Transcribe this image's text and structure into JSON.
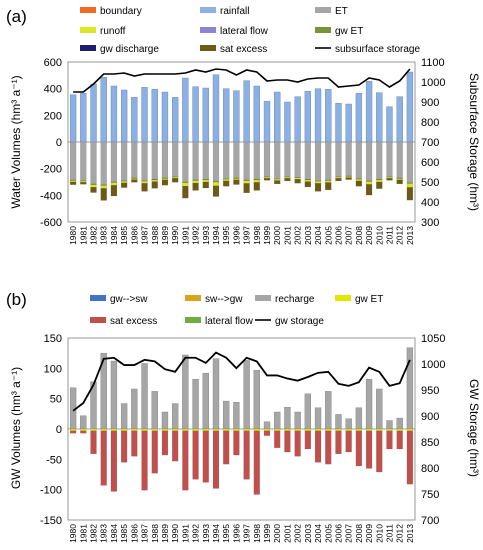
{
  "colors": {
    "boundary": "#f26b22",
    "rainfall": "#8db0e3",
    "ET": "#a6a6a6",
    "runoff": "#d9e820",
    "lateral_flow": "#8a83d8",
    "gw_ET": "#77933c",
    "gw_discharge": "#1f1a74",
    "sat_excess": "#6e5a16",
    "gw_sw": "#4472c4",
    "sw_gw": "#d9a31b",
    "recharge_b": "#a6a6a6",
    "gw_ET_b": "#e0e800",
    "sat_excess_b": "#c0504d",
    "lateral_flow_b": "#70ad47",
    "line": "#000000"
  },
  "chart_data": [
    {
      "panel_label": "(a)",
      "type": "bar",
      "categories": [
        "1980",
        "1981",
        "1982",
        "1983",
        "1984",
        "1985",
        "1986",
        "1987",
        "1988",
        "1989",
        "1990",
        "1991",
        "1992",
        "1993",
        "1994",
        "1995",
        "1996",
        "1997",
        "1998",
        "1999",
        "2000",
        "2001",
        "2002",
        "2003",
        "2004",
        "2005",
        "2006",
        "2007",
        "2008",
        "2009",
        "2010",
        "2011",
        "2012",
        "2013"
      ],
      "ylabel": "Water Volumes (hm³ a⁻¹)",
      "ylabel_right": "Subsurface Storage (hm³)",
      "ylim": [
        -600,
        600
      ],
      "yticks": [
        -600,
        -400,
        -200,
        0,
        200,
        400,
        600
      ],
      "ylim_right": [
        300,
        1100
      ],
      "yticks_right": [
        300,
        400,
        500,
        600,
        700,
        800,
        900,
        1000,
        1100
      ],
      "legend": [
        {
          "label": "boundary",
          "key": "boundary",
          "kind": "bar"
        },
        {
          "label": "rainfall",
          "key": "rainfall",
          "kind": "bar"
        },
        {
          "label": "ET",
          "key": "ET",
          "kind": "bar"
        },
        {
          "label": "runoff",
          "key": "runoff",
          "kind": "bar"
        },
        {
          "label": "lateral flow",
          "key": "lateral_flow",
          "kind": "bar"
        },
        {
          "label": "gw ET",
          "key": "gw_ET",
          "kind": "bar"
        },
        {
          "label": "gw discharge",
          "key": "gw_discharge",
          "kind": "bar"
        },
        {
          "label": "sat excess",
          "key": "sat_excess",
          "kind": "bar"
        },
        {
          "label": "subsurface storage",
          "key": "line",
          "kind": "line"
        }
      ],
      "series": [
        {
          "name": "rainfall",
          "values": [
            355,
            365,
            435,
            485,
            420,
            390,
            335,
            410,
            395,
            375,
            335,
            480,
            415,
            405,
            505,
            400,
            385,
            460,
            420,
            305,
            375,
            300,
            340,
            380,
            400,
            395,
            290,
            285,
            365,
            455,
            370,
            265,
            340,
            525
          ]
        },
        {
          "name": "ET",
          "values": [
            -285,
            -290,
            -315,
            -320,
            -300,
            -290,
            -270,
            -290,
            -280,
            -270,
            -260,
            -300,
            -285,
            -280,
            -295,
            -275,
            -270,
            -285,
            -280,
            -260,
            -275,
            -260,
            -265,
            -280,
            -290,
            -285,
            -260,
            -255,
            -275,
            -290,
            -280,
            -260,
            -270,
            -305
          ]
        },
        {
          "name": "runoff",
          "values": [
            -10,
            -8,
            -18,
            -22,
            -20,
            -12,
            -8,
            -15,
            -12,
            -10,
            -8,
            -25,
            -18,
            -15,
            -28,
            -12,
            -10,
            -20,
            -18,
            -8,
            -10,
            -8,
            -10,
            -12,
            -15,
            -14,
            -8,
            -8,
            -12,
            -22,
            -15,
            -8,
            -10,
            -30
          ]
        },
        {
          "name": "sat excess",
          "values": [
            -20,
            -15,
            -40,
            -90,
            -80,
            -35,
            -20,
            -60,
            -50,
            -40,
            -30,
            -90,
            -55,
            -45,
            -80,
            -40,
            -35,
            -70,
            -60,
            -15,
            -25,
            -20,
            -30,
            -40,
            -60,
            -55,
            -20,
            -15,
            -40,
            -80,
            -50,
            -15,
            -30,
            -95
          ]
        },
        {
          "name": "gw ET",
          "values": [
            -5,
            -4,
            -6,
            -6,
            -5,
            -5,
            -4,
            -5,
            -5,
            -4,
            -4,
            -6,
            -5,
            -5,
            -6,
            -5,
            -4,
            -6,
            -5,
            -4,
            -4,
            -4,
            -4,
            -5,
            -5,
            -5,
            -4,
            -4,
            -5,
            -6,
            -5,
            -4,
            -4,
            -6
          ]
        },
        {
          "name": "subsurface storage",
          "axis": "right",
          "values": [
            950,
            950,
            990,
            1040,
            1040,
            1045,
            1030,
            1040,
            1040,
            1040,
            1040,
            1045,
            1060,
            1050,
            1065,
            1060,
            1035,
            1060,
            1050,
            1005,
            1010,
            1010,
            1000,
            1015,
            1020,
            1020,
            975,
            980,
            985,
            1020,
            1010,
            975,
            1005,
            1065
          ]
        }
      ]
    },
    {
      "panel_label": "(b)",
      "type": "bar",
      "categories": [
        "1980",
        "1981",
        "1982",
        "1983",
        "1984",
        "1985",
        "1986",
        "1987",
        "1988",
        "1989",
        "1990",
        "1991",
        "1992",
        "1993",
        "1994",
        "1995",
        "1996",
        "1997",
        "1998",
        "1999",
        "2000",
        "2001",
        "2002",
        "2003",
        "2004",
        "2005",
        "2006",
        "2007",
        "2008",
        "2009",
        "2010",
        "2011",
        "2012",
        "2013"
      ],
      "ylabel": "GW Volumes (hm³ a⁻¹)",
      "ylabel_right": "GW Storage (hm³)",
      "ylim": [
        -150,
        150
      ],
      "yticks": [
        -150,
        -100,
        -50,
        0,
        50,
        100,
        150
      ],
      "ylim_right": [
        700,
        1050
      ],
      "yticks_right": [
        700,
        750,
        800,
        850,
        900,
        950,
        1000,
        1050
      ],
      "legend": [
        {
          "label": "gw-->sw",
          "key": "gw_sw",
          "kind": "bar"
        },
        {
          "label": "sw-->gw",
          "key": "sw_gw",
          "kind": "bar"
        },
        {
          "label": "recharge",
          "key": "recharge_b",
          "kind": "bar"
        },
        {
          "label": "gw ET",
          "key": "gw_ET_b",
          "kind": "bar"
        },
        {
          "label": "sat excess",
          "key": "sat_excess_b",
          "kind": "bar"
        },
        {
          "label": "lateral flow",
          "key": "lateral_flow_b",
          "kind": "bar"
        },
        {
          "label": "gw storage",
          "key": "line",
          "kind": "line"
        }
      ],
      "series": [
        {
          "name": "recharge",
          "values": [
            68,
            22,
            78,
            125,
            112,
            42,
            66,
            108,
            62,
            28,
            42,
            122,
            82,
            92,
            116,
            46,
            44,
            113,
            97,
            12,
            28,
            36,
            28,
            58,
            35,
            62,
            24,
            17,
            35,
            82,
            66,
            14,
            18,
            134
          ]
        },
        {
          "name": "sat excess",
          "values": [
            -4,
            -4,
            -38,
            -90,
            -100,
            -52,
            -42,
            -98,
            -70,
            -40,
            -50,
            -98,
            -80,
            -85,
            -95,
            -55,
            -40,
            -80,
            -105,
            -8,
            -28,
            -35,
            -42,
            -30,
            -52,
            -55,
            -38,
            -35,
            -58,
            -62,
            -68,
            -30,
            -30,
            -88
          ]
        },
        {
          "name": "gw ET",
          "values": [
            -3,
            -3,
            -3,
            -3,
            -3,
            -3,
            -3,
            -3,
            -3,
            -3,
            -3,
            -3,
            -3,
            -3,
            -3,
            -3,
            -3,
            -3,
            -3,
            -3,
            -3,
            -3,
            -3,
            -3,
            -3,
            -3,
            -3,
            -3,
            -3,
            -3,
            -3,
            -3,
            -3,
            -3
          ]
        },
        {
          "name": "gw storage",
          "axis": "right",
          "values": [
            910,
            925,
            960,
            1010,
            1012,
            998,
            998,
            1008,
            1005,
            990,
            985,
            1012,
            1012,
            1002,
            1022,
            1012,
            992,
            1012,
            1005,
            978,
            978,
            972,
            968,
            975,
            983,
            985,
            962,
            958,
            965,
            993,
            985,
            958,
            963,
            1008
          ]
        }
      ]
    }
  ]
}
